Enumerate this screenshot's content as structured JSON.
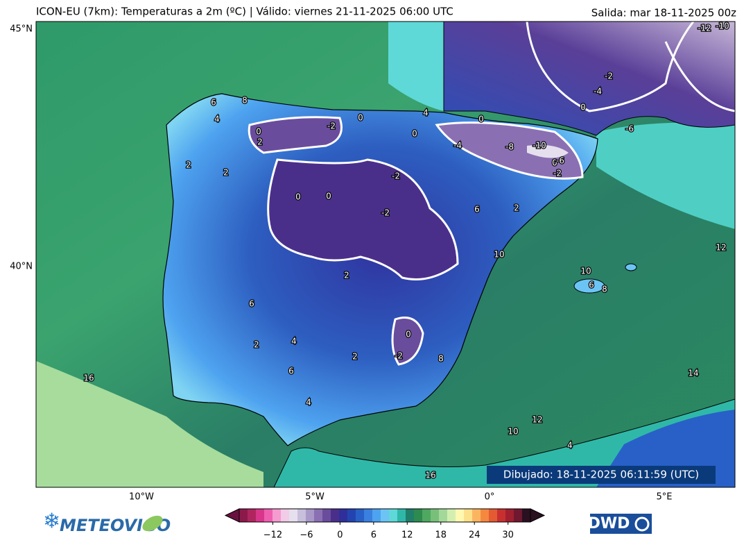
{
  "header": {
    "title": "ICON-EU (7km): Temperaturas a 2m (ºC) | Válido: viernes 21-11-2025 06:00 UTC",
    "run": "Salida: mar 18-11-2025 00z"
  },
  "map": {
    "lat_labels": [
      "45°N",
      "40°N"
    ],
    "lon_labels": [
      "10°W",
      "5°W",
      "0°",
      "5°E"
    ],
    "contour_labels": [
      "6",
      "8",
      "4",
      "0",
      "2",
      "-2",
      "0",
      "2",
      "2",
      "0",
      "-2",
      "0",
      "-2",
      "0",
      "0",
      "4",
      "0",
      "-4",
      "-8",
      "-10",
      "-6",
      "-2",
      "2",
      "6",
      "2",
      "10",
      "12",
      "10",
      "6",
      "8",
      "14",
      "16",
      "16",
      "4",
      "6",
      "2",
      "4",
      "6",
      "8",
      "2",
      "-2",
      "0",
      "12",
      "10",
      "4",
      "-6",
      "-4",
      "-2",
      "0",
      "-12",
      "-10"
    ],
    "drawn": "Dibujado: 18-11-2025 06:11:59 (UTC)"
  },
  "colorbar": {
    "lim": [
      -18,
      34
    ],
    "ticks": [
      {
        "value": -12,
        "label": "−12"
      },
      {
        "value": -6,
        "label": "−6"
      },
      0,
      6,
      12,
      18,
      24,
      30
    ],
    "colors": [
      "#8b1a4a",
      "#b0255f",
      "#d9358a",
      "#ef5fb0",
      "#f59bd0",
      "#f2cbe6",
      "#e6e0ee",
      "#c7bfdc",
      "#a898c8",
      "#8a70b3",
      "#6a4c9c",
      "#4a2f8a",
      "#2f2f9a",
      "#2344b0",
      "#2860c8",
      "#3a80e0",
      "#4ea3f0",
      "#6cc4f5",
      "#5fd8d8",
      "#2fb8a8",
      "#1f7f6a",
      "#2e8b50",
      "#4ea860",
      "#78c07a",
      "#a4d89a",
      "#d2efb0",
      "#fff8b0",
      "#fde08a",
      "#fbb560",
      "#f4883f",
      "#e45a32",
      "#c83030",
      "#a02030",
      "#701830",
      "#2a1020"
    ],
    "logo_left": "METEOVIGO",
    "logo_right": "DWD"
  }
}
